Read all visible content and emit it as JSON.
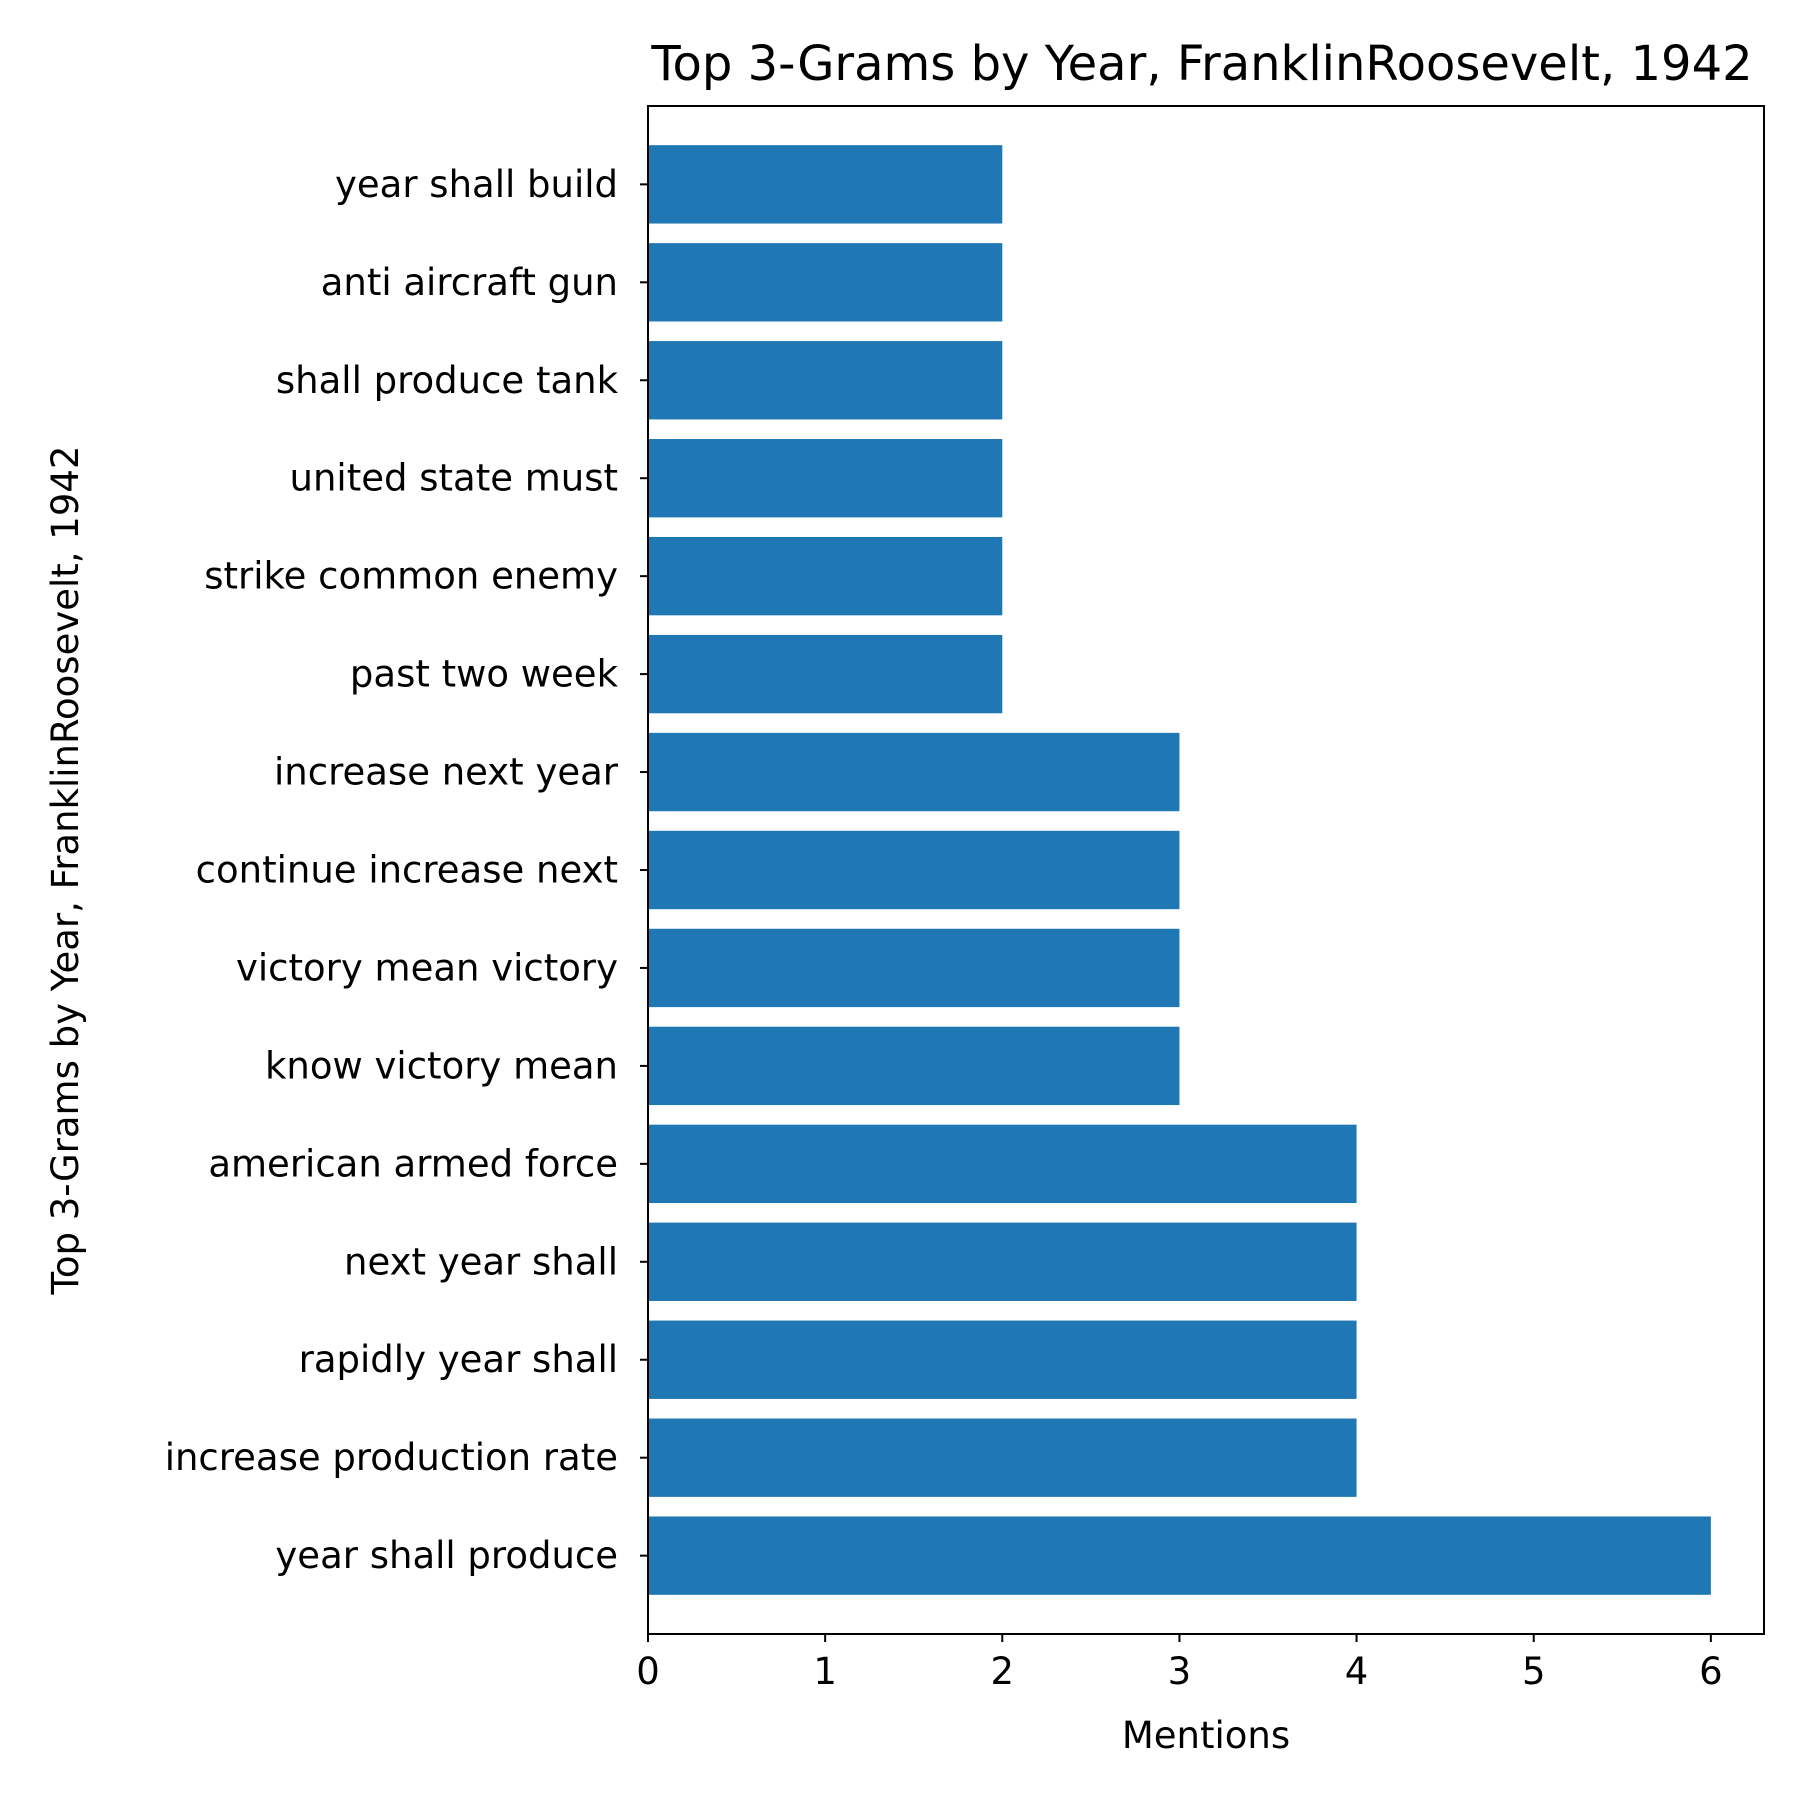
{
  "chart_data": {
    "type": "bar",
    "orientation": "horizontal",
    "title": "Top 3-Grams by Year, FranklinRoosevelt, 1942",
    "xlabel": "Mentions",
    "ylabel": "Top 3-Grams by Year, FranklinRoosevelt, 1942",
    "categories": [
      "year shall produce",
      "increase production rate",
      "rapidly year shall",
      "next year shall",
      "american armed force",
      "know victory mean",
      "victory mean victory",
      "continue increase next",
      "increase next year",
      "past two week",
      "strike common enemy",
      "united state must",
      "shall produce tank",
      "anti aircraft gun",
      "year shall build"
    ],
    "values": [
      6,
      4,
      4,
      4,
      4,
      3,
      3,
      3,
      3,
      2,
      2,
      2,
      2,
      2,
      2
    ],
    "xlim": [
      0,
      6.3
    ],
    "xticks": [
      0,
      1,
      2,
      3,
      4,
      5,
      6
    ],
    "grid": false,
    "bar_color": "#1f77b4"
  }
}
